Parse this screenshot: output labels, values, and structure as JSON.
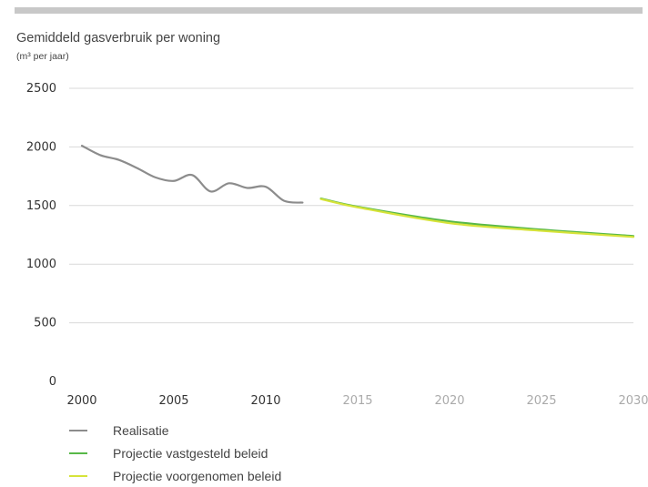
{
  "chart_data": {
    "type": "line",
    "title": "Gemiddeld gasverbruik per woning",
    "subtitle": "(m³ per jaar)",
    "xlabel": "",
    "ylabel": "",
    "xlim": [
      2000,
      2030
    ],
    "ylim": [
      0,
      2500
    ],
    "y_ticks": [
      "0",
      "500",
      "1000",
      "1500",
      "2000",
      "2500"
    ],
    "x_ticks": [
      {
        "label": "2000",
        "value": 2000,
        "muted": false
      },
      {
        "label": "2005",
        "value": 2005,
        "muted": false
      },
      {
        "label": "2010",
        "value": 2010,
        "muted": false
      },
      {
        "label": "2015",
        "value": 2015,
        "muted": true
      },
      {
        "label": "2020",
        "value": 2020,
        "muted": true
      },
      {
        "label": "2025",
        "value": 2025,
        "muted": true
      },
      {
        "label": "2030",
        "value": 2030,
        "muted": true
      }
    ],
    "grid": "horizontal",
    "legend_position": "bottom-left",
    "series": [
      {
        "name": "Realisatie",
        "color": "#8c8c8c",
        "x": [
          2000,
          2001,
          2002,
          2003,
          2004,
          2005,
          2006,
          2007,
          2008,
          2009,
          2010,
          2011,
          2012
        ],
        "y": [
          2010,
          1930,
          1890,
          1820,
          1740,
          1710,
          1760,
          1620,
          1690,
          1650,
          1660,
          1540,
          1525
        ]
      },
      {
        "name": "Projectie vastgesteld beleid",
        "color": "#58b848",
        "x": [
          2013,
          2015,
          2020,
          2025,
          2030
        ],
        "y": [
          1560,
          1490,
          1365,
          1295,
          1240
        ]
      },
      {
        "name": "Projectie voorgenomen beleid",
        "color": "#d6e33a",
        "x": [
          2013,
          2015,
          2020,
          2025,
          2030
        ],
        "y": [
          1555,
          1485,
          1350,
          1285,
          1232
        ]
      }
    ]
  },
  "colors": {
    "grid": "#d9d9d9",
    "tick_dark": "#333333",
    "tick_muted": "#aaaaaa",
    "topbar": "#c8c8c8"
  }
}
